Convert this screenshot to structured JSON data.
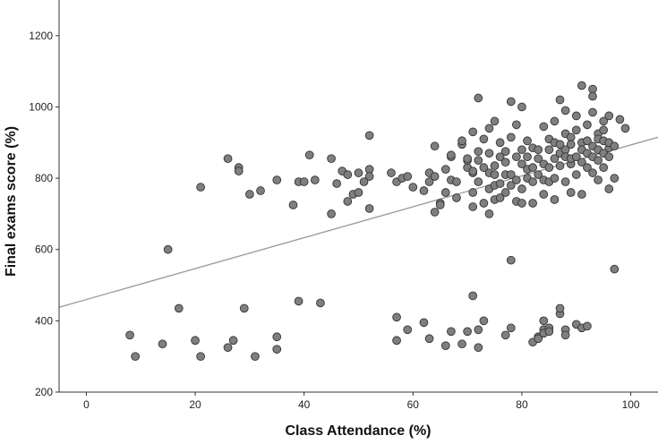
{
  "chart_data": {
    "type": "scatter",
    "title": "",
    "xlabel": "Class Attendance (%)",
    "ylabel": "Final exams score (%)",
    "xlim": [
      -5,
      105
    ],
    "ylim": [
      200,
      1300
    ],
    "xticks": [
      "0",
      "20",
      "40",
      "60",
      "80",
      "100"
    ],
    "yticks": [
      "200",
      "400",
      "600",
      "800",
      "1000",
      "1200"
    ],
    "grid": false,
    "legend": "none",
    "point_color": "#7f7f7f",
    "point_stroke": "#333333",
    "fit_line_color": "#999999",
    "fit_line": {
      "x": [
        -5,
        105
      ],
      "y": [
        438,
        915
      ]
    },
    "series": [
      {
        "points": [
          [
            8,
            360
          ],
          [
            9,
            300
          ],
          [
            14,
            335
          ],
          [
            15,
            600
          ],
          [
            17,
            435
          ],
          [
            20,
            345
          ],
          [
            21,
            300
          ],
          [
            21,
            775
          ],
          [
            26,
            325
          ],
          [
            26,
            855
          ],
          [
            27,
            345
          ],
          [
            28,
            830
          ],
          [
            28,
            820
          ],
          [
            29,
            435
          ],
          [
            30,
            755
          ],
          [
            31,
            300
          ],
          [
            32,
            765
          ],
          [
            35,
            355
          ],
          [
            35,
            320
          ],
          [
            35,
            795
          ],
          [
            38,
            725
          ],
          [
            39,
            455
          ],
          [
            39,
            790
          ],
          [
            40,
            790
          ],
          [
            41,
            865
          ],
          [
            42,
            795
          ],
          [
            43,
            450
          ],
          [
            45,
            700
          ],
          [
            45,
            855
          ],
          [
            46,
            785
          ],
          [
            47,
            820
          ],
          [
            48,
            735
          ],
          [
            48,
            810
          ],
          [
            49,
            755
          ],
          [
            50,
            760
          ],
          [
            50,
            815
          ],
          [
            51,
            790
          ],
          [
            52,
            715
          ],
          [
            52,
            825
          ],
          [
            52,
            805
          ],
          [
            52,
            920
          ],
          [
            56,
            815
          ],
          [
            57,
            345
          ],
          [
            57,
            410
          ],
          [
            57,
            790
          ],
          [
            58,
            800
          ],
          [
            59,
            805
          ],
          [
            59,
            375
          ],
          [
            60,
            775
          ],
          [
            62,
            765
          ],
          [
            62,
            395
          ],
          [
            63,
            815
          ],
          [
            63,
            350
          ],
          [
            63,
            790
          ],
          [
            64,
            805
          ],
          [
            64,
            890
          ],
          [
            64,
            705
          ],
          [
            65,
            730
          ],
          [
            65,
            725
          ],
          [
            66,
            330
          ],
          [
            66,
            760
          ],
          [
            66,
            825
          ],
          [
            67,
            370
          ],
          [
            67,
            860
          ],
          [
            67,
            795
          ],
          [
            67,
            865
          ],
          [
            68,
            790
          ],
          [
            68,
            745
          ],
          [
            69,
            335
          ],
          [
            69,
            895
          ],
          [
            69,
            905
          ],
          [
            70,
            830
          ],
          [
            70,
            370
          ],
          [
            70,
            850
          ],
          [
            70,
            855
          ],
          [
            71,
            815
          ],
          [
            71,
            820
          ],
          [
            71,
            930
          ],
          [
            71,
            470
          ],
          [
            71,
            760
          ],
          [
            71,
            720
          ],
          [
            72,
            375
          ],
          [
            72,
            325
          ],
          [
            72,
            850
          ],
          [
            72,
            875
          ],
          [
            72,
            1025
          ],
          [
            72,
            790
          ],
          [
            73,
            830
          ],
          [
            73,
            910
          ],
          [
            73,
            400
          ],
          [
            73,
            730
          ],
          [
            74,
            700
          ],
          [
            74,
            815
          ],
          [
            74,
            940
          ],
          [
            74,
            870
          ],
          [
            74,
            770
          ],
          [
            75,
            835
          ],
          [
            75,
            810
          ],
          [
            75,
            960
          ],
          [
            75,
            780
          ],
          [
            75,
            740
          ],
          [
            76,
            900
          ],
          [
            76,
            860
          ],
          [
            76,
            785
          ],
          [
            76,
            745
          ],
          [
            77,
            360
          ],
          [
            77,
            845
          ],
          [
            77,
            810
          ],
          [
            77,
            875
          ],
          [
            77,
            760
          ],
          [
            78,
            570
          ],
          [
            78,
            380
          ],
          [
            78,
            1015
          ],
          [
            78,
            915
          ],
          [
            78,
            810
          ],
          [
            78,
            780
          ],
          [
            79,
            950
          ],
          [
            79,
            860
          ],
          [
            79,
            795
          ],
          [
            79,
            735
          ],
          [
            80,
            1000
          ],
          [
            80,
            880
          ],
          [
            80,
            840
          ],
          [
            80,
            770
          ],
          [
            80,
            730
          ],
          [
            81,
            905
          ],
          [
            81,
            825
          ],
          [
            81,
            800
          ],
          [
            81,
            860
          ],
          [
            82,
            340
          ],
          [
            82,
            830
          ],
          [
            82,
            885
          ],
          [
            82,
            790
          ],
          [
            82,
            730
          ],
          [
            83,
            355
          ],
          [
            83,
            350
          ],
          [
            83,
            855
          ],
          [
            83,
            810
          ],
          [
            83,
            880
          ],
          [
            84,
            400
          ],
          [
            84,
            375
          ],
          [
            84,
            365
          ],
          [
            84,
            840
          ],
          [
            84,
            945
          ],
          [
            84,
            795
          ],
          [
            84,
            755
          ],
          [
            85,
            380
          ],
          [
            85,
            370
          ],
          [
            85,
            880
          ],
          [
            85,
            830
          ],
          [
            85,
            910
          ],
          [
            85,
            790
          ],
          [
            86,
            900
          ],
          [
            86,
            855
          ],
          [
            86,
            800
          ],
          [
            86,
            960
          ],
          [
            86,
            740
          ],
          [
            87,
            420
          ],
          [
            87,
            435
          ],
          [
            87,
            1020
          ],
          [
            87,
            870
          ],
          [
            87,
            835
          ],
          [
            87,
            895
          ],
          [
            88,
            375
          ],
          [
            88,
            360
          ],
          [
            88,
            880
          ],
          [
            88,
            925
          ],
          [
            88,
            790
          ],
          [
            88,
            860
          ],
          [
            88,
            990
          ],
          [
            89,
            915
          ],
          [
            89,
            840
          ],
          [
            89,
            855
          ],
          [
            89,
            895
          ],
          [
            89,
            760
          ],
          [
            90,
            390
          ],
          [
            90,
            935
          ],
          [
            90,
            860
          ],
          [
            90,
            975
          ],
          [
            90,
            810
          ],
          [
            91,
            380
          ],
          [
            91,
            1060
          ],
          [
            91,
            900
          ],
          [
            91,
            880
          ],
          [
            91,
            845
          ],
          [
            91,
            755
          ],
          [
            92,
            385
          ],
          [
            92,
            870
          ],
          [
            92,
            905
          ],
          [
            92,
            950
          ],
          [
            92,
            830
          ],
          [
            93,
            1050
          ],
          [
            93,
            1030
          ],
          [
            93,
            985
          ],
          [
            93,
            890
          ],
          [
            93,
            860
          ],
          [
            93,
            815
          ],
          [
            94,
            925
          ],
          [
            94,
            880
          ],
          [
            94,
            850
          ],
          [
            94,
            910
          ],
          [
            94,
            795
          ],
          [
            95,
            935
          ],
          [
            95,
            905
          ],
          [
            95,
            960
          ],
          [
            95,
            870
          ],
          [
            95,
            830
          ],
          [
            96,
            885
          ],
          [
            96,
            900
          ],
          [
            96,
            860
          ],
          [
            96,
            975
          ],
          [
            96,
            770
          ],
          [
            97,
            545
          ],
          [
            97,
            890
          ],
          [
            97,
            800
          ],
          [
            98,
            965
          ],
          [
            99,
            940
          ]
        ]
      }
    ]
  }
}
